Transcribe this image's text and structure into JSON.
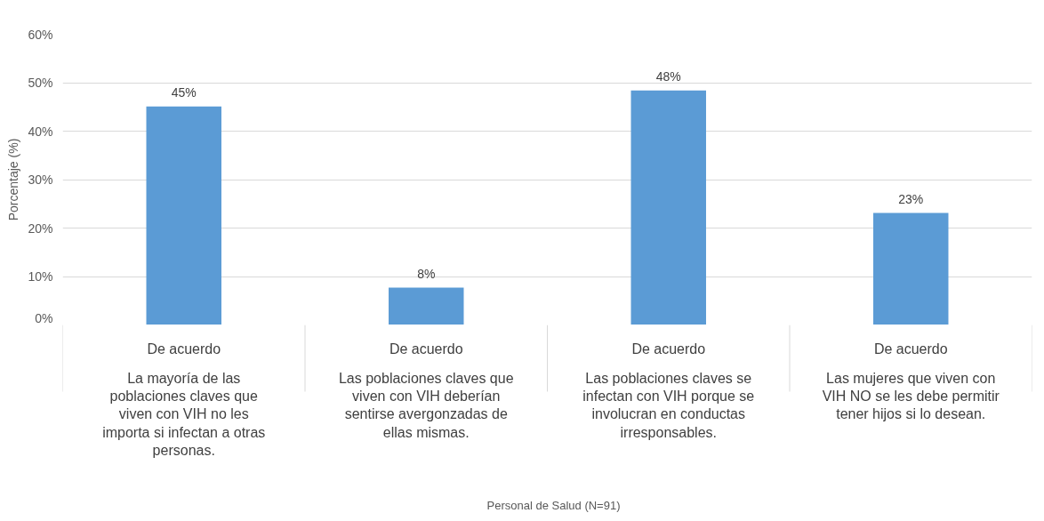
{
  "chart_data": {
    "type": "bar",
    "ylabel": "Porcentaje (%)",
    "categories": [
      "La mayoría de las poblaciones claves que viven con VIH no les importa si infectan a otras personas.",
      "Las poblaciones claves que viven con VIH deberían sentirse avergonzadas de ellas mismas.",
      "Las poblaciones claves se infectan con VIH porque se involucran en conductas irresponsables.",
      "Las mujeres que viven con VIH NO se les debe permitir tener hijos si lo desean."
    ],
    "annotations": [
      "De acuerdo",
      "De acuerdo",
      "De acuerdo",
      "De acuerdo"
    ],
    "series": [
      {
        "name": "Personal de Salud (N=91)",
        "color": "#5b9bd5",
        "values": [
          45.1,
          7.7,
          48.4,
          23.1
        ],
        "value_labels": [
          "45%",
          "8%",
          "48%",
          "23%"
        ]
      }
    ],
    "ylim": [
      0,
      60
    ],
    "yticks": [
      {
        "value": 0,
        "label": "0%"
      },
      {
        "value": 10,
        "label": "10%"
      },
      {
        "value": 20,
        "label": "20%"
      },
      {
        "value": 30,
        "label": "30%"
      },
      {
        "value": 40,
        "label": "40%"
      },
      {
        "value": 50,
        "label": "50%"
      },
      {
        "value": 60,
        "label": "60%"
      }
    ],
    "grid": "y",
    "legend": "bottom"
  }
}
